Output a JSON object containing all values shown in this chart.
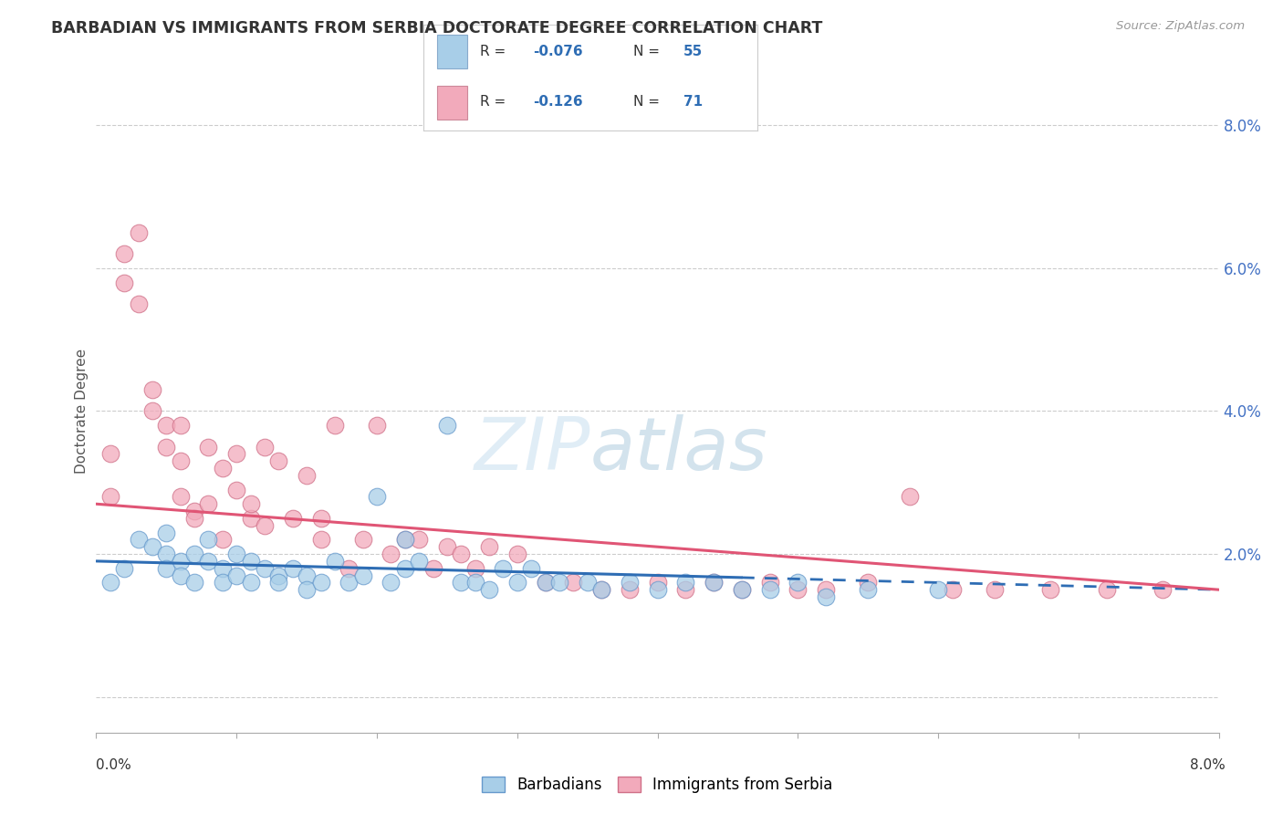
{
  "title": "BARBADIAN VS IMMIGRANTS FROM SERBIA DOCTORATE DEGREE CORRELATION CHART",
  "source": "Source: ZipAtlas.com",
  "ylabel": "Doctorate Degree",
  "xmin": 0.0,
  "xmax": 0.08,
  "ymin": -0.005,
  "ymax": 0.085,
  "color_blue": "#A8CEE8",
  "color_pink": "#F2AABB",
  "color_blue_line": "#2E6DB4",
  "color_pink_line": "#E05575",
  "color_blue_text": "#2E6DB4",
  "watermark_zip": "ZIP",
  "watermark_atlas": "atlas",
  "barbadians_x": [
    0.001,
    0.002,
    0.003,
    0.004,
    0.005,
    0.005,
    0.005,
    0.006,
    0.006,
    0.007,
    0.007,
    0.008,
    0.008,
    0.009,
    0.009,
    0.01,
    0.01,
    0.011,
    0.011,
    0.012,
    0.013,
    0.013,
    0.014,
    0.015,
    0.015,
    0.016,
    0.017,
    0.018,
    0.019,
    0.02,
    0.021,
    0.022,
    0.022,
    0.023,
    0.025,
    0.026,
    0.027,
    0.028,
    0.029,
    0.03,
    0.031,
    0.032,
    0.033,
    0.035,
    0.036,
    0.038,
    0.04,
    0.042,
    0.044,
    0.046,
    0.048,
    0.05,
    0.052,
    0.055,
    0.06
  ],
  "barbadians_y": [
    0.016,
    0.018,
    0.022,
    0.021,
    0.02,
    0.018,
    0.023,
    0.019,
    0.017,
    0.02,
    0.016,
    0.019,
    0.022,
    0.018,
    0.016,
    0.017,
    0.02,
    0.019,
    0.016,
    0.018,
    0.017,
    0.016,
    0.018,
    0.017,
    0.015,
    0.016,
    0.019,
    0.016,
    0.017,
    0.028,
    0.016,
    0.022,
    0.018,
    0.019,
    0.038,
    0.016,
    0.016,
    0.015,
    0.018,
    0.016,
    0.018,
    0.016,
    0.016,
    0.016,
    0.015,
    0.016,
    0.015,
    0.016,
    0.016,
    0.015,
    0.015,
    0.016,
    0.014,
    0.015,
    0.015
  ],
  "serbia_x": [
    0.001,
    0.001,
    0.002,
    0.002,
    0.003,
    0.003,
    0.004,
    0.004,
    0.005,
    0.005,
    0.006,
    0.006,
    0.006,
    0.007,
    0.007,
    0.008,
    0.008,
    0.009,
    0.009,
    0.01,
    0.01,
    0.011,
    0.011,
    0.012,
    0.012,
    0.013,
    0.014,
    0.015,
    0.016,
    0.016,
    0.017,
    0.018,
    0.019,
    0.02,
    0.021,
    0.022,
    0.023,
    0.024,
    0.025,
    0.026,
    0.027,
    0.028,
    0.03,
    0.032,
    0.034,
    0.036,
    0.038,
    0.04,
    0.042,
    0.044,
    0.046,
    0.048,
    0.05,
    0.052,
    0.055,
    0.058,
    0.061,
    0.064,
    0.068,
    0.072,
    0.076
  ],
  "serbia_y": [
    0.028,
    0.034,
    0.058,
    0.062,
    0.055,
    0.065,
    0.04,
    0.043,
    0.038,
    0.035,
    0.033,
    0.038,
    0.028,
    0.026,
    0.025,
    0.035,
    0.027,
    0.032,
    0.022,
    0.034,
    0.029,
    0.025,
    0.027,
    0.035,
    0.024,
    0.033,
    0.025,
    0.031,
    0.025,
    0.022,
    0.038,
    0.018,
    0.022,
    0.038,
    0.02,
    0.022,
    0.022,
    0.018,
    0.021,
    0.02,
    0.018,
    0.021,
    0.02,
    0.016,
    0.016,
    0.015,
    0.015,
    0.016,
    0.015,
    0.016,
    0.015,
    0.016,
    0.015,
    0.015,
    0.016,
    0.028,
    0.015,
    0.015,
    0.015,
    0.015,
    0.015
  ],
  "trend_blue_x0": 0.0,
  "trend_blue_x1": 0.08,
  "trend_blue_y0": 0.019,
  "trend_blue_y1": 0.015,
  "trend_blue_solid_end": 0.046,
  "trend_pink_x0": 0.0,
  "trend_pink_x1": 0.08,
  "trend_pink_y0": 0.027,
  "trend_pink_y1": 0.015
}
